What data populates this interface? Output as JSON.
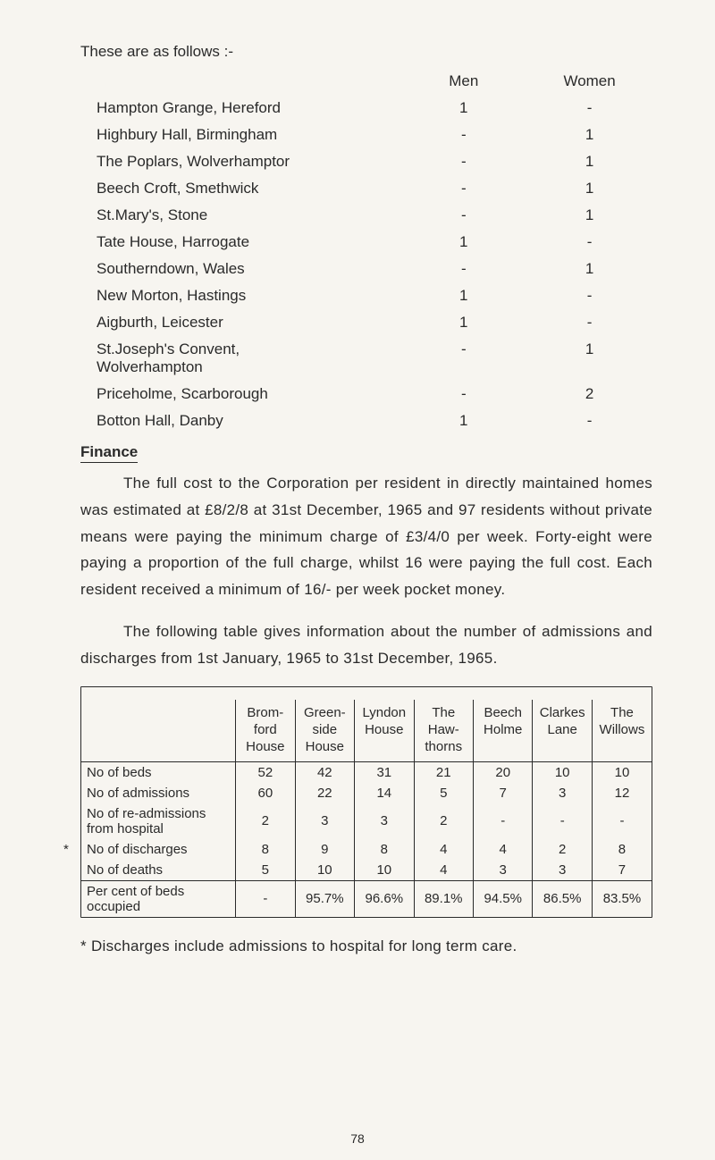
{
  "intro": "These are as follows :-",
  "listHeader": {
    "men": "Men",
    "women": "Women"
  },
  "homes": [
    {
      "name": "Hampton Grange, Hereford",
      "men": "1",
      "women": "-"
    },
    {
      "name": "Highbury Hall, Birmingham",
      "men": "-",
      "women": "1"
    },
    {
      "name": "The Poplars, Wolverhamptor",
      "men": "-",
      "women": "1"
    },
    {
      "name": "Beech Croft, Smethwick",
      "men": "-",
      "women": "1"
    },
    {
      "name": "St.Mary's, Stone",
      "men": "-",
      "women": "1"
    },
    {
      "name": "Tate House, Harrogate",
      "men": "1",
      "women": "-"
    },
    {
      "name": "Southerndown, Wales",
      "men": "-",
      "women": "1"
    },
    {
      "name": "New Morton, Hastings",
      "men": "1",
      "women": "-"
    },
    {
      "name": "Aigburth, Leicester",
      "men": "1",
      "women": "-"
    },
    {
      "name": "St.Joseph's Convent,\n        Wolverhampton",
      "men": "-",
      "women": "1"
    },
    {
      "name": "Priceholme, Scarborough",
      "men": "-",
      "women": "2"
    },
    {
      "name": "Botton Hall, Danby",
      "men": "1",
      "women": "-"
    }
  ],
  "financeHeading": "Finance",
  "para1": "The full cost to the Corporation per resident in directly main­tained homes was estimated at £8/2/8 at 31st December, 1965 and 97 residents without private means were paying the minimum charge of £3/4/0 per week.  Forty-eight were paying a proportion of the full charge, whilst 16 were paying the full cost.  Each resident received a minimum of 16/- per week pocket money.",
  "para2": "The following table gives information about the number of admissions and discharges from 1st January, 1965 to 31st December, 1965.",
  "admTable": {
    "columns": [
      "",
      "Brom-\nford\nHouse",
      "Green-\nside\nHouse",
      "Lyndon\nHouse",
      "The\nHaw-\nthorns",
      "Beech\nHolme",
      "Clarkes\nLane",
      "The\nWillows"
    ],
    "rows": [
      {
        "label": "No of beds",
        "vals": [
          "52",
          "42",
          "31",
          "21",
          "20",
          "10",
          "10"
        ]
      },
      {
        "label": "No of admissions",
        "vals": [
          "60",
          "22",
          "14",
          "5",
          "7",
          "3",
          "12"
        ]
      },
      {
        "label": "No of re-admissions\n  from hospital",
        "vals": [
          "2",
          "3",
          "3",
          "2",
          "-",
          "-",
          "-"
        ]
      },
      {
        "label": "No of discharges",
        "star": true,
        "vals": [
          "8",
          "9",
          "8",
          "4",
          "4",
          "2",
          "8"
        ]
      },
      {
        "label": "No of deaths",
        "vals": [
          "5",
          "10",
          "10",
          "4",
          "3",
          "3",
          "7"
        ]
      }
    ],
    "footerRow": {
      "label": "Per cent of beds\n    occupied",
      "vals": [
        "-",
        "95.7%",
        "96.6%",
        "89.1%",
        "94.5%",
        "86.5%",
        "83.5%"
      ]
    }
  },
  "footnote": "*  Discharges include admissions to hospital for long term care.",
  "pageNumber": "78"
}
